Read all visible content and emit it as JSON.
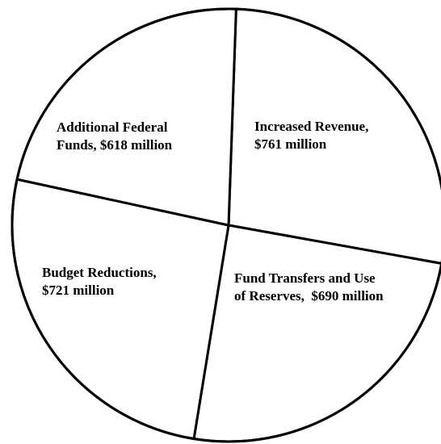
{
  "chart_data": {
    "type": "pie",
    "title": "",
    "slices": [
      {
        "label_lines": [
          "Increased Revenue,",
          "$761 million"
        ],
        "value": 761
      },
      {
        "label_lines": [
          "Fund Transfers and Use",
          "of Reserves,  $690 million"
        ],
        "value": 690
      },
      {
        "label_lines": [
          "Budget Reductions,",
          "$721 million"
        ],
        "value": 721
      },
      {
        "label_lines": [
          "Additional Federal",
          "Funds, $618 million"
        ],
        "value": 618
      }
    ],
    "colors": {
      "fill": "#ffffff",
      "stroke": "#000000"
    },
    "legend": "none"
  }
}
